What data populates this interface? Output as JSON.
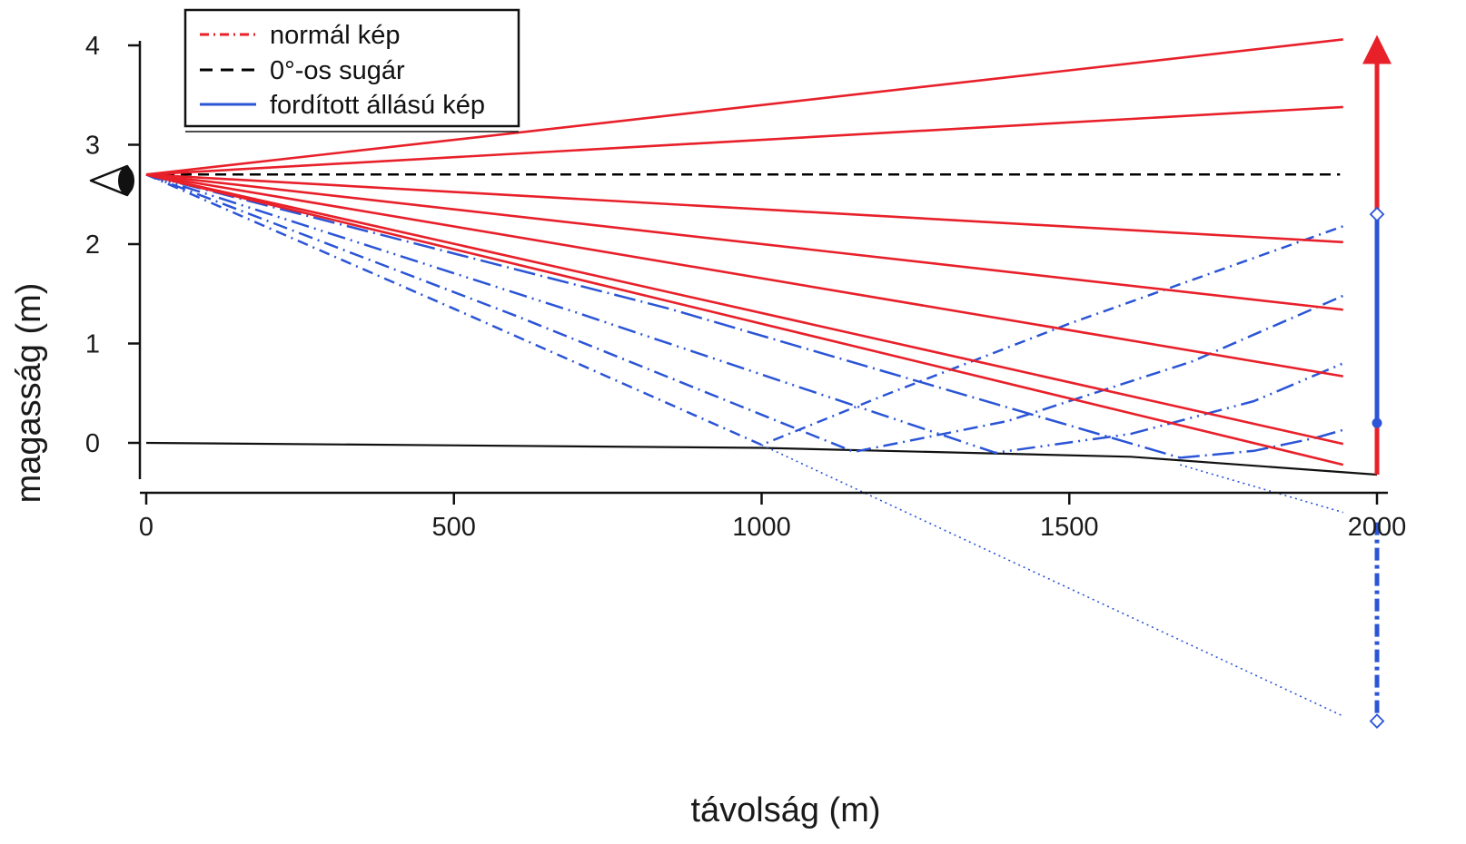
{
  "chart_data": {
    "type": "line",
    "xlabel": "távolság (m)",
    "ylabel": "magasság (m)",
    "xlim": [
      -12,
      2005
    ],
    "ylim": [
      -0.35,
      4.1
    ],
    "x_ticks": [
      0,
      500,
      1000,
      1500,
      2000
    ],
    "y_ticks": [
      0,
      1,
      2,
      3,
      4
    ],
    "legend_position": "top-left",
    "legend": [
      {
        "label": "normál kép",
        "color": "#e8202a",
        "dash": "dot-dash"
      },
      {
        "label": "0°-os sugár",
        "color": "#000000",
        "dash": "dashed"
      },
      {
        "label": "fordított állású kép",
        "color": "#2b55d6",
        "dash": "solid"
      }
    ],
    "observer": {
      "x": -8,
      "y": 2.7,
      "icon": "eye-icon"
    },
    "ground": [
      [
        0,
        0
      ],
      [
        1000,
        -0.05
      ],
      [
        1600,
        -0.14
      ],
      [
        2000,
        -0.32
      ]
    ],
    "horizontal_ray": {
      "x": [
        0,
        1940
      ],
      "y": [
        2.7,
        2.7
      ],
      "color": "#000000"
    },
    "normal_rays": {
      "color": "#e8202a",
      "x_end": 1945,
      "y_start": 2.7,
      "y_end": [
        4.06,
        3.38,
        2.02,
        1.34,
        0.67,
        -0.01,
        -0.22
      ]
    },
    "inverted_rays": {
      "color": "#2b55d6",
      "series": [
        {
          "x": [
            0,
            500,
            1000,
            1200,
            1500,
            1945
          ],
          "y": [
            2.7,
            1.35,
            -0.02,
            0.48,
            1.2,
            2.18
          ]
        },
        {
          "x": [
            0,
            600,
            1150,
            1400,
            1700,
            1945
          ],
          "y": [
            2.7,
            1.28,
            -0.09,
            0.22,
            0.82,
            1.48
          ]
        },
        {
          "x": [
            0,
            700,
            1380,
            1600,
            1800,
            1945
          ],
          "y": [
            2.7,
            1.31,
            -0.1,
            0.09,
            0.42,
            0.8
          ]
        },
        {
          "x": [
            0,
            850,
            1680,
            1800,
            1900,
            1945
          ],
          "y": [
            2.7,
            1.35,
            -0.15,
            -0.08,
            0.05,
            0.13
          ]
        }
      ],
      "dotted_extension": {
        "x": [
          1000,
          1945
        ],
        "y": [
          -0.02,
          -2.75
        ]
      },
      "dotted_extension_2": {
        "x": [
          1680,
          1945
        ],
        "y": [
          -0.22,
          -0.7
        ]
      }
    },
    "image_markers": {
      "x": 2000,
      "normal_arrow": {
        "y_bottom": -0.32,
        "y_top": 4.05,
        "color": "#e8202a"
      },
      "inverted_segment": {
        "y_bottom": 0.2,
        "y_top": 2.3,
        "color": "#2b55d6"
      },
      "inverted_below_axis": {
        "y_top": -0.8,
        "y_bottom": -2.8,
        "color": "#2b55d6"
      }
    }
  }
}
